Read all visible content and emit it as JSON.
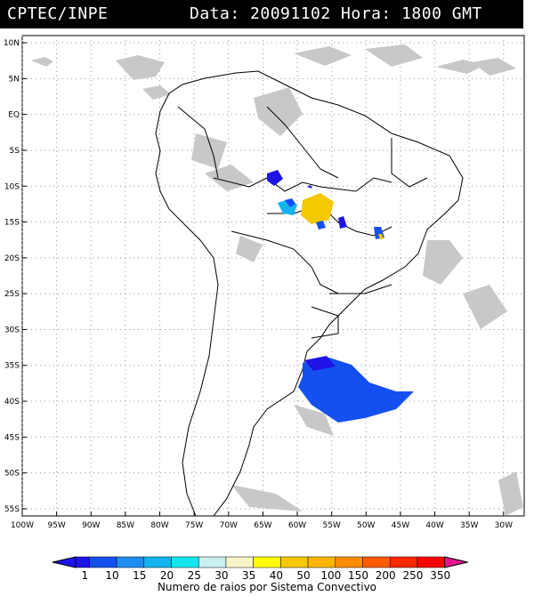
{
  "header": {
    "source": "CPTEC/INPE",
    "datetime": "Data: 20091102 Hora: 1800 GMT"
  },
  "map": {
    "lat_labels": [
      "10N",
      "5N",
      "EQ",
      "5S",
      "10S",
      "15S",
      "20S",
      "25S",
      "30S",
      "35S",
      "40S",
      "45S",
      "50S",
      "55S"
    ],
    "lon_labels": [
      "100W",
      "95W",
      "90W",
      "85W",
      "80W",
      "75W",
      "70W",
      "65W",
      "60W",
      "55W",
      "50W",
      "45W",
      "40W",
      "35W",
      "30W"
    ],
    "lat_range": [
      11,
      -56
    ],
    "lon_range": [
      -100,
      -27
    ],
    "graticule": "dotted"
  },
  "legend": {
    "title": "Numero de raios por Sistema Convectivo",
    "values": [
      "1",
      "10",
      "15",
      "20",
      "25",
      "30",
      "35",
      "40",
      "50",
      "100",
      "150",
      "200",
      "250",
      "350"
    ],
    "colors": [
      "#1e14e6",
      "#1450f0",
      "#1e8cf0",
      "#14b4f0",
      "#14e6f0",
      "#c8f0f0",
      "#f5f5c8",
      "#ffff00",
      "#f5c800",
      "#ffb400",
      "#ff8c00",
      "#ff5a00",
      "#ff2800",
      "#ff0000",
      "#e6148c"
    ]
  }
}
